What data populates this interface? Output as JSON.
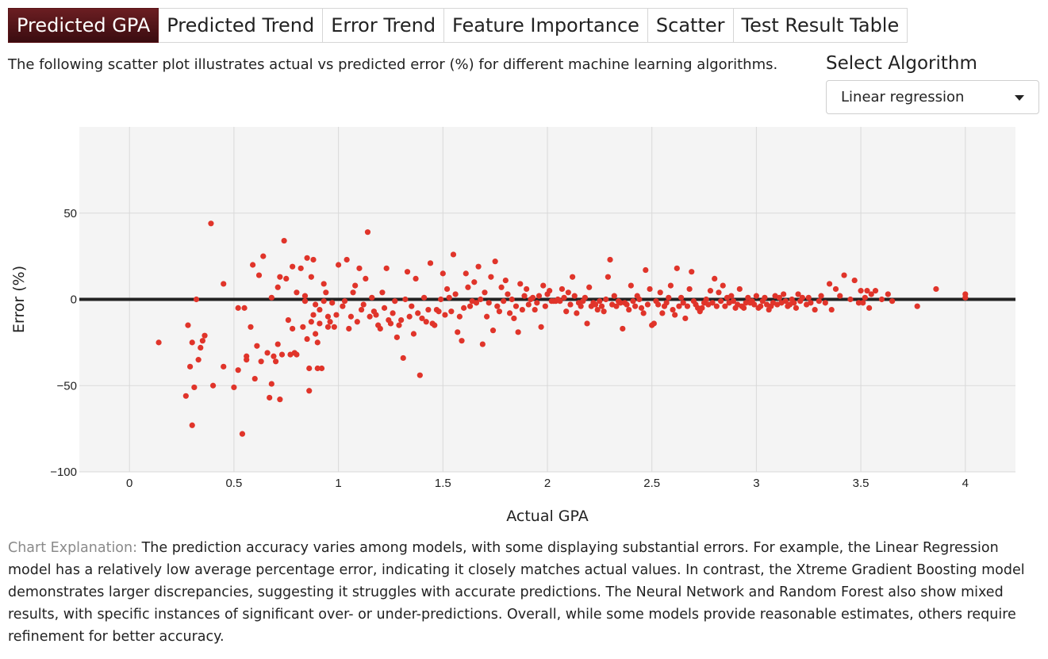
{
  "tabs": [
    {
      "label": "Predicted GPA",
      "active": true
    },
    {
      "label": "Predicted Trend",
      "active": false
    },
    {
      "label": "Error Trend",
      "active": false
    },
    {
      "label": "Feature Importance",
      "active": false
    },
    {
      "label": "Scatter",
      "active": false
    },
    {
      "label": "Test Result Table",
      "active": false
    }
  ],
  "description": "The following scatter plot illustrates actual vs predicted error (%) for different machine learning algorithms.",
  "algorithm_select": {
    "label": "Select Algorithm",
    "value": "Linear regression"
  },
  "explanation": {
    "label": "Chart Explanation:",
    "text": "The prediction accuracy varies among models, with some displaying substantial errors. For example, the Linear Regression model has a relatively low average percentage error, indicating it closely matches actual values. In contrast, the Xtreme Gradient Boosting model demonstrates larger discrepancies, suggesting it struggles with accurate predictions. The Neural Network and Random Forest also show mixed results, with specific instances of significant over- or under-predictions. Overall, while some models provide reasonable estimates, others require refinement for better accuracy."
  },
  "colors": {
    "accent": "#5a1418",
    "points": "#e0342a",
    "zero_line": "#222222",
    "plot_bg": "#f4f4f4"
  },
  "chart_data": {
    "type": "scatter",
    "xlabel": "Actual GPA",
    "ylabel": "Error (%)",
    "xlim": [
      -0.24,
      4.24
    ],
    "ylim": [
      -100,
      100
    ],
    "xticks": [
      0,
      0.5,
      1,
      1.5,
      2,
      2.5,
      3,
      3.5,
      4
    ],
    "xtick_labels": [
      "0",
      "0.5",
      "1",
      "1.5",
      "2",
      "2.5",
      "3",
      "3.5",
      "4"
    ],
    "yticks": [
      -100,
      -50,
      0,
      50
    ],
    "ytick_labels": [
      "−100",
      "−50",
      "0",
      "50"
    ],
    "reference_line_y": 0,
    "grid": true,
    "points": [
      [
        0.14,
        -25
      ],
      [
        0.27,
        -56
      ],
      [
        0.28,
        -15
      ],
      [
        0.29,
        -39
      ],
      [
        0.3,
        -25
      ],
      [
        0.3,
        -73
      ],
      [
        0.31,
        -51
      ],
      [
        0.32,
        0
      ],
      [
        0.33,
        -35
      ],
      [
        0.34,
        -28
      ],
      [
        0.35,
        -24
      ],
      [
        0.36,
        -21
      ],
      [
        0.39,
        44
      ],
      [
        0.4,
        -50
      ],
      [
        0.45,
        9
      ],
      [
        0.45,
        -39
      ],
      [
        0.5,
        -51
      ],
      [
        0.52,
        -41
      ],
      [
        0.52,
        -5
      ],
      [
        0.54,
        -78
      ],
      [
        0.55,
        -5
      ],
      [
        0.56,
        -35
      ],
      [
        0.56,
        -33
      ],
      [
        0.58,
        -16
      ],
      [
        0.59,
        20
      ],
      [
        0.6,
        -46
      ],
      [
        0.61,
        -27
      ],
      [
        0.62,
        14
      ],
      [
        0.63,
        -36
      ],
      [
        0.64,
        25
      ],
      [
        0.66,
        -31
      ],
      [
        0.67,
        -57
      ],
      [
        0.68,
        -49
      ],
      [
        0.68,
        1
      ],
      [
        0.69,
        -33
      ],
      [
        0.7,
        -36
      ],
      [
        0.71,
        -26
      ],
      [
        0.71,
        7
      ],
      [
        0.72,
        -58
      ],
      [
        0.72,
        13
      ],
      [
        0.73,
        -32
      ],
      [
        0.74,
        34
      ],
      [
        0.75,
        12
      ],
      [
        0.76,
        -12
      ],
      [
        0.77,
        -32
      ],
      [
        0.78,
        19
      ],
      [
        0.78,
        -17
      ],
      [
        0.79,
        -31
      ],
      [
        0.8,
        4
      ],
      [
        0.8,
        -32
      ],
      [
        0.82,
        18
      ],
      [
        0.83,
        -16
      ],
      [
        0.84,
        2
      ],
      [
        0.84,
        -1
      ],
      [
        0.85,
        24
      ],
      [
        0.85,
        -23
      ],
      [
        0.86,
        -53
      ],
      [
        0.86,
        -40
      ],
      [
        0.87,
        -13
      ],
      [
        0.87,
        13
      ],
      [
        0.88,
        23
      ],
      [
        0.88,
        -9
      ],
      [
        0.89,
        -20
      ],
      [
        0.89,
        -3
      ],
      [
        0.9,
        -40
      ],
      [
        0.9,
        -25
      ],
      [
        0.91,
        -14
      ],
      [
        0.91,
        -6
      ],
      [
        0.92,
        -40
      ],
      [
        0.93,
        9
      ],
      [
        0.93,
        -1
      ],
      [
        0.94,
        4
      ],
      [
        0.95,
        -16
      ],
      [
        0.95,
        -10
      ],
      [
        0.96,
        -13
      ],
      [
        0.97,
        -2
      ],
      [
        0.98,
        -16
      ],
      [
        0.99,
        -9
      ],
      [
        1.0,
        20
      ],
      [
        1.02,
        -4
      ],
      [
        1.03,
        -1
      ],
      [
        1.04,
        23
      ],
      [
        1.05,
        -17
      ],
      [
        1.06,
        -10
      ],
      [
        1.07,
        4
      ],
      [
        1.08,
        8
      ],
      [
        1.09,
        -13
      ],
      [
        1.1,
        18
      ],
      [
        1.11,
        -6
      ],
      [
        1.12,
        -3
      ],
      [
        1.13,
        12
      ],
      [
        1.14,
        39
      ],
      [
        1.15,
        -10
      ],
      [
        1.16,
        1
      ],
      [
        1.17,
        -7
      ],
      [
        1.18,
        -9
      ],
      [
        1.19,
        -15
      ],
      [
        1.2,
        -17
      ],
      [
        1.21,
        4
      ],
      [
        1.22,
        -5
      ],
      [
        1.23,
        18
      ],
      [
        1.24,
        -12
      ],
      [
        1.25,
        -14
      ],
      [
        1.26,
        -8
      ],
      [
        1.27,
        -1
      ],
      [
        1.28,
        -22
      ],
      [
        1.29,
        -15
      ],
      [
        1.3,
        -12
      ],
      [
        1.31,
        -34
      ],
      [
        1.32,
        0
      ],
      [
        1.33,
        16
      ],
      [
        1.34,
        -10
      ],
      [
        1.35,
        -4
      ],
      [
        1.36,
        -20
      ],
      [
        1.37,
        12
      ],
      [
        1.38,
        -8
      ],
      [
        1.39,
        -44
      ],
      [
        1.4,
        -11
      ],
      [
        1.41,
        1
      ],
      [
        1.42,
        -13
      ],
      [
        1.43,
        -6
      ],
      [
        1.44,
        21
      ],
      [
        1.45,
        -14
      ],
      [
        1.46,
        -15
      ],
      [
        1.47,
        -6
      ],
      [
        1.48,
        -7
      ],
      [
        1.49,
        0
      ],
      [
        1.5,
        15
      ],
      [
        1.51,
        -9
      ],
      [
        1.52,
        6
      ],
      [
        1.53,
        1
      ],
      [
        1.54,
        -7
      ],
      [
        1.55,
        26
      ],
      [
        1.56,
        3
      ],
      [
        1.57,
        -19
      ],
      [
        1.58,
        -10
      ],
      [
        1.59,
        -24
      ],
      [
        1.6,
        -5
      ],
      [
        1.61,
        15
      ],
      [
        1.62,
        7
      ],
      [
        1.63,
        -4
      ],
      [
        1.64,
        -1
      ],
      [
        1.65,
        10
      ],
      [
        1.66,
        -2
      ],
      [
        1.67,
        19
      ],
      [
        1.68,
        0
      ],
      [
        1.69,
        -26
      ],
      [
        1.7,
        4
      ],
      [
        1.71,
        -10
      ],
      [
        1.72,
        -2
      ],
      [
        1.73,
        13
      ],
      [
        1.74,
        -18
      ],
      [
        1.75,
        22
      ],
      [
        1.76,
        -4
      ],
      [
        1.77,
        -7
      ],
      [
        1.78,
        7
      ],
      [
        1.79,
        -1
      ],
      [
        1.8,
        11
      ],
      [
        1.81,
        3
      ],
      [
        1.82,
        -8
      ],
      [
        1.83,
        0
      ],
      [
        1.84,
        -11
      ],
      [
        1.85,
        -4
      ],
      [
        1.86,
        -19
      ],
      [
        1.87,
        9
      ],
      [
        1.88,
        -6
      ],
      [
        1.89,
        2
      ],
      [
        1.9,
        6
      ],
      [
        1.91,
        -3
      ],
      [
        1.92,
        0
      ],
      [
        1.93,
        1
      ],
      [
        1.94,
        -6
      ],
      [
        1.95,
        -2
      ],
      [
        1.96,
        2
      ],
      [
        1.97,
        -16
      ],
      [
        1.98,
        8
      ],
      [
        1.99,
        -4
      ],
      [
        2.0,
        3
      ],
      [
        2.01,
        5
      ],
      [
        2.02,
        -1
      ],
      [
        2.03,
        -1
      ],
      [
        2.04,
        -1
      ],
      [
        2.05,
        0
      ],
      [
        2.06,
        -1
      ],
      [
        2.07,
        6
      ],
      [
        2.08,
        1
      ],
      [
        2.09,
        -7
      ],
      [
        2.1,
        4
      ],
      [
        2.11,
        -3
      ],
      [
        2.12,
        13
      ],
      [
        2.13,
        2
      ],
      [
        2.14,
        -8
      ],
      [
        2.15,
        -2
      ],
      [
        2.16,
        -4
      ],
      [
        2.17,
        -1
      ],
      [
        2.18,
        1
      ],
      [
        2.19,
        -14
      ],
      [
        2.2,
        7
      ],
      [
        2.21,
        -4
      ],
      [
        2.22,
        -2
      ],
      [
        2.23,
        -3
      ],
      [
        2.24,
        -6
      ],
      [
        2.25,
        -1
      ],
      [
        2.26,
        -4
      ],
      [
        2.27,
        -7
      ],
      [
        2.28,
        0
      ],
      [
        2.29,
        13
      ],
      [
        2.3,
        23
      ],
      [
        2.31,
        -3
      ],
      [
        2.32,
        2
      ],
      [
        2.33,
        -4
      ],
      [
        2.34,
        -1
      ],
      [
        2.35,
        -2
      ],
      [
        2.36,
        -17
      ],
      [
        2.37,
        -2
      ],
      [
        2.38,
        -3
      ],
      [
        2.39,
        -6
      ],
      [
        2.4,
        8
      ],
      [
        2.41,
        -1
      ],
      [
        2.42,
        -4
      ],
      [
        2.43,
        2
      ],
      [
        2.44,
        0
      ],
      [
        2.45,
        -5
      ],
      [
        2.46,
        -8
      ],
      [
        2.47,
        17
      ],
      [
        2.48,
        -3
      ],
      [
        2.49,
        6
      ],
      [
        2.5,
        -15
      ],
      [
        2.51,
        -14
      ],
      [
        2.52,
        -1
      ],
      [
        2.53,
        -3
      ],
      [
        2.54,
        4
      ],
      [
        2.55,
        -8
      ],
      [
        2.56,
        -4
      ],
      [
        2.57,
        -2
      ],
      [
        2.58,
        1
      ],
      [
        2.59,
        8
      ],
      [
        2.6,
        -6
      ],
      [
        2.61,
        -9
      ],
      [
        2.62,
        18
      ],
      [
        2.63,
        -4
      ],
      [
        2.64,
        1
      ],
      [
        2.65,
        -2
      ],
      [
        2.66,
        -11
      ],
      [
        2.67,
        -4
      ],
      [
        2.68,
        6
      ],
      [
        2.69,
        16
      ],
      [
        2.7,
        -1
      ],
      [
        2.71,
        -3
      ],
      [
        2.72,
        -5
      ],
      [
        2.73,
        -7
      ],
      [
        2.74,
        -5
      ],
      [
        2.75,
        -2
      ],
      [
        2.76,
        0
      ],
      [
        2.77,
        -3
      ],
      [
        2.78,
        5
      ],
      [
        2.79,
        -2
      ],
      [
        2.8,
        12
      ],
      [
        2.81,
        -4
      ],
      [
        2.82,
        4
      ],
      [
        2.83,
        -1
      ],
      [
        2.84,
        8
      ],
      [
        2.85,
        -4
      ],
      [
        2.86,
        1
      ],
      [
        2.87,
        -2
      ],
      [
        2.88,
        2
      ],
      [
        2.89,
        -1
      ],
      [
        2.9,
        -5
      ],
      [
        2.91,
        -3
      ],
      [
        2.92,
        6
      ],
      [
        2.93,
        -4
      ],
      [
        2.94,
        -5
      ],
      [
        2.95,
        -2
      ],
      [
        2.96,
        1
      ],
      [
        2.97,
        -2
      ],
      [
        2.98,
        -1
      ],
      [
        2.99,
        -3
      ],
      [
        3.0,
        2
      ],
      [
        3.01,
        -5
      ],
      [
        3.02,
        -4
      ],
      [
        3.03,
        -1
      ],
      [
        3.04,
        1
      ],
      [
        3.05,
        -3
      ],
      [
        3.06,
        -6
      ],
      [
        3.07,
        -4
      ],
      [
        3.08,
        -2
      ],
      [
        3.09,
        2
      ],
      [
        3.1,
        -3
      ],
      [
        3.11,
        1
      ],
      [
        3.12,
        -2
      ],
      [
        3.13,
        3
      ],
      [
        3.14,
        -1
      ],
      [
        3.15,
        -4
      ],
      [
        3.16,
        -3
      ],
      [
        3.17,
        0
      ],
      [
        3.18,
        -2
      ],
      [
        3.19,
        -5
      ],
      [
        3.2,
        3
      ],
      [
        3.21,
        -1
      ],
      [
        3.22,
        1
      ],
      [
        3.24,
        -3
      ],
      [
        3.25,
        1
      ],
      [
        3.26,
        -2
      ],
      [
        3.28,
        -6
      ],
      [
        3.3,
        -1
      ],
      [
        3.31,
        2
      ],
      [
        3.33,
        -2
      ],
      [
        3.35,
        9
      ],
      [
        3.36,
        -6
      ],
      [
        3.38,
        6
      ],
      [
        3.4,
        2
      ],
      [
        3.42,
        14
      ],
      [
        3.45,
        0
      ],
      [
        3.47,
        11
      ],
      [
        3.49,
        -2
      ],
      [
        3.5,
        5
      ],
      [
        3.51,
        -2
      ],
      [
        3.52,
        1
      ],
      [
        3.53,
        5
      ],
      [
        3.54,
        -5
      ],
      [
        3.55,
        3
      ],
      [
        3.57,
        5
      ],
      [
        3.6,
        0
      ],
      [
        3.63,
        3
      ],
      [
        3.65,
        -1
      ],
      [
        3.77,
        -4
      ],
      [
        3.86,
        6
      ],
      [
        4.0,
        3
      ],
      [
        4.0,
        1
      ]
    ]
  }
}
